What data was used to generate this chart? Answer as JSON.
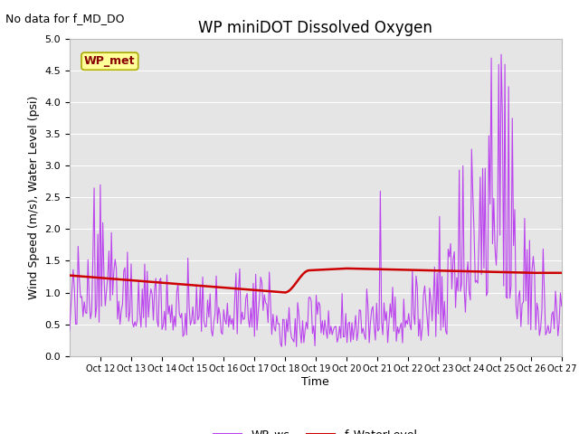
{
  "title": "WP miniDOT Dissolved Oxygen",
  "subtitle": "No data for f_MD_DO",
  "ylabel": "Wind Speed (m/s), Water Level (psi)",
  "xlabel": "Time",
  "xlim": [
    11,
    27
  ],
  "ylim": [
    0.0,
    5.0
  ],
  "yticks": [
    0.0,
    0.5,
    1.0,
    1.5,
    2.0,
    2.5,
    3.0,
    3.5,
    4.0,
    4.5,
    5.0
  ],
  "xtick_days": [
    12,
    13,
    14,
    15,
    16,
    17,
    18,
    19,
    20,
    21,
    22,
    23,
    24,
    25,
    26,
    27
  ],
  "bg_color": "#e5e5e5",
  "grid_color": "#ffffff",
  "wp_ws_color": "#bb44ee",
  "f_wl_color": "#cc0000",
  "legend_box_facecolor": "#ffff99",
  "legend_box_edgecolor": "#aaaa00",
  "legend_box_text": "WP_met",
  "legend_box_text_color": "#880000",
  "title_fontsize": 12,
  "subtitle_fontsize": 9,
  "tick_fontsize": 8,
  "ylabel_fontsize": 9,
  "xlabel_fontsize": 9
}
